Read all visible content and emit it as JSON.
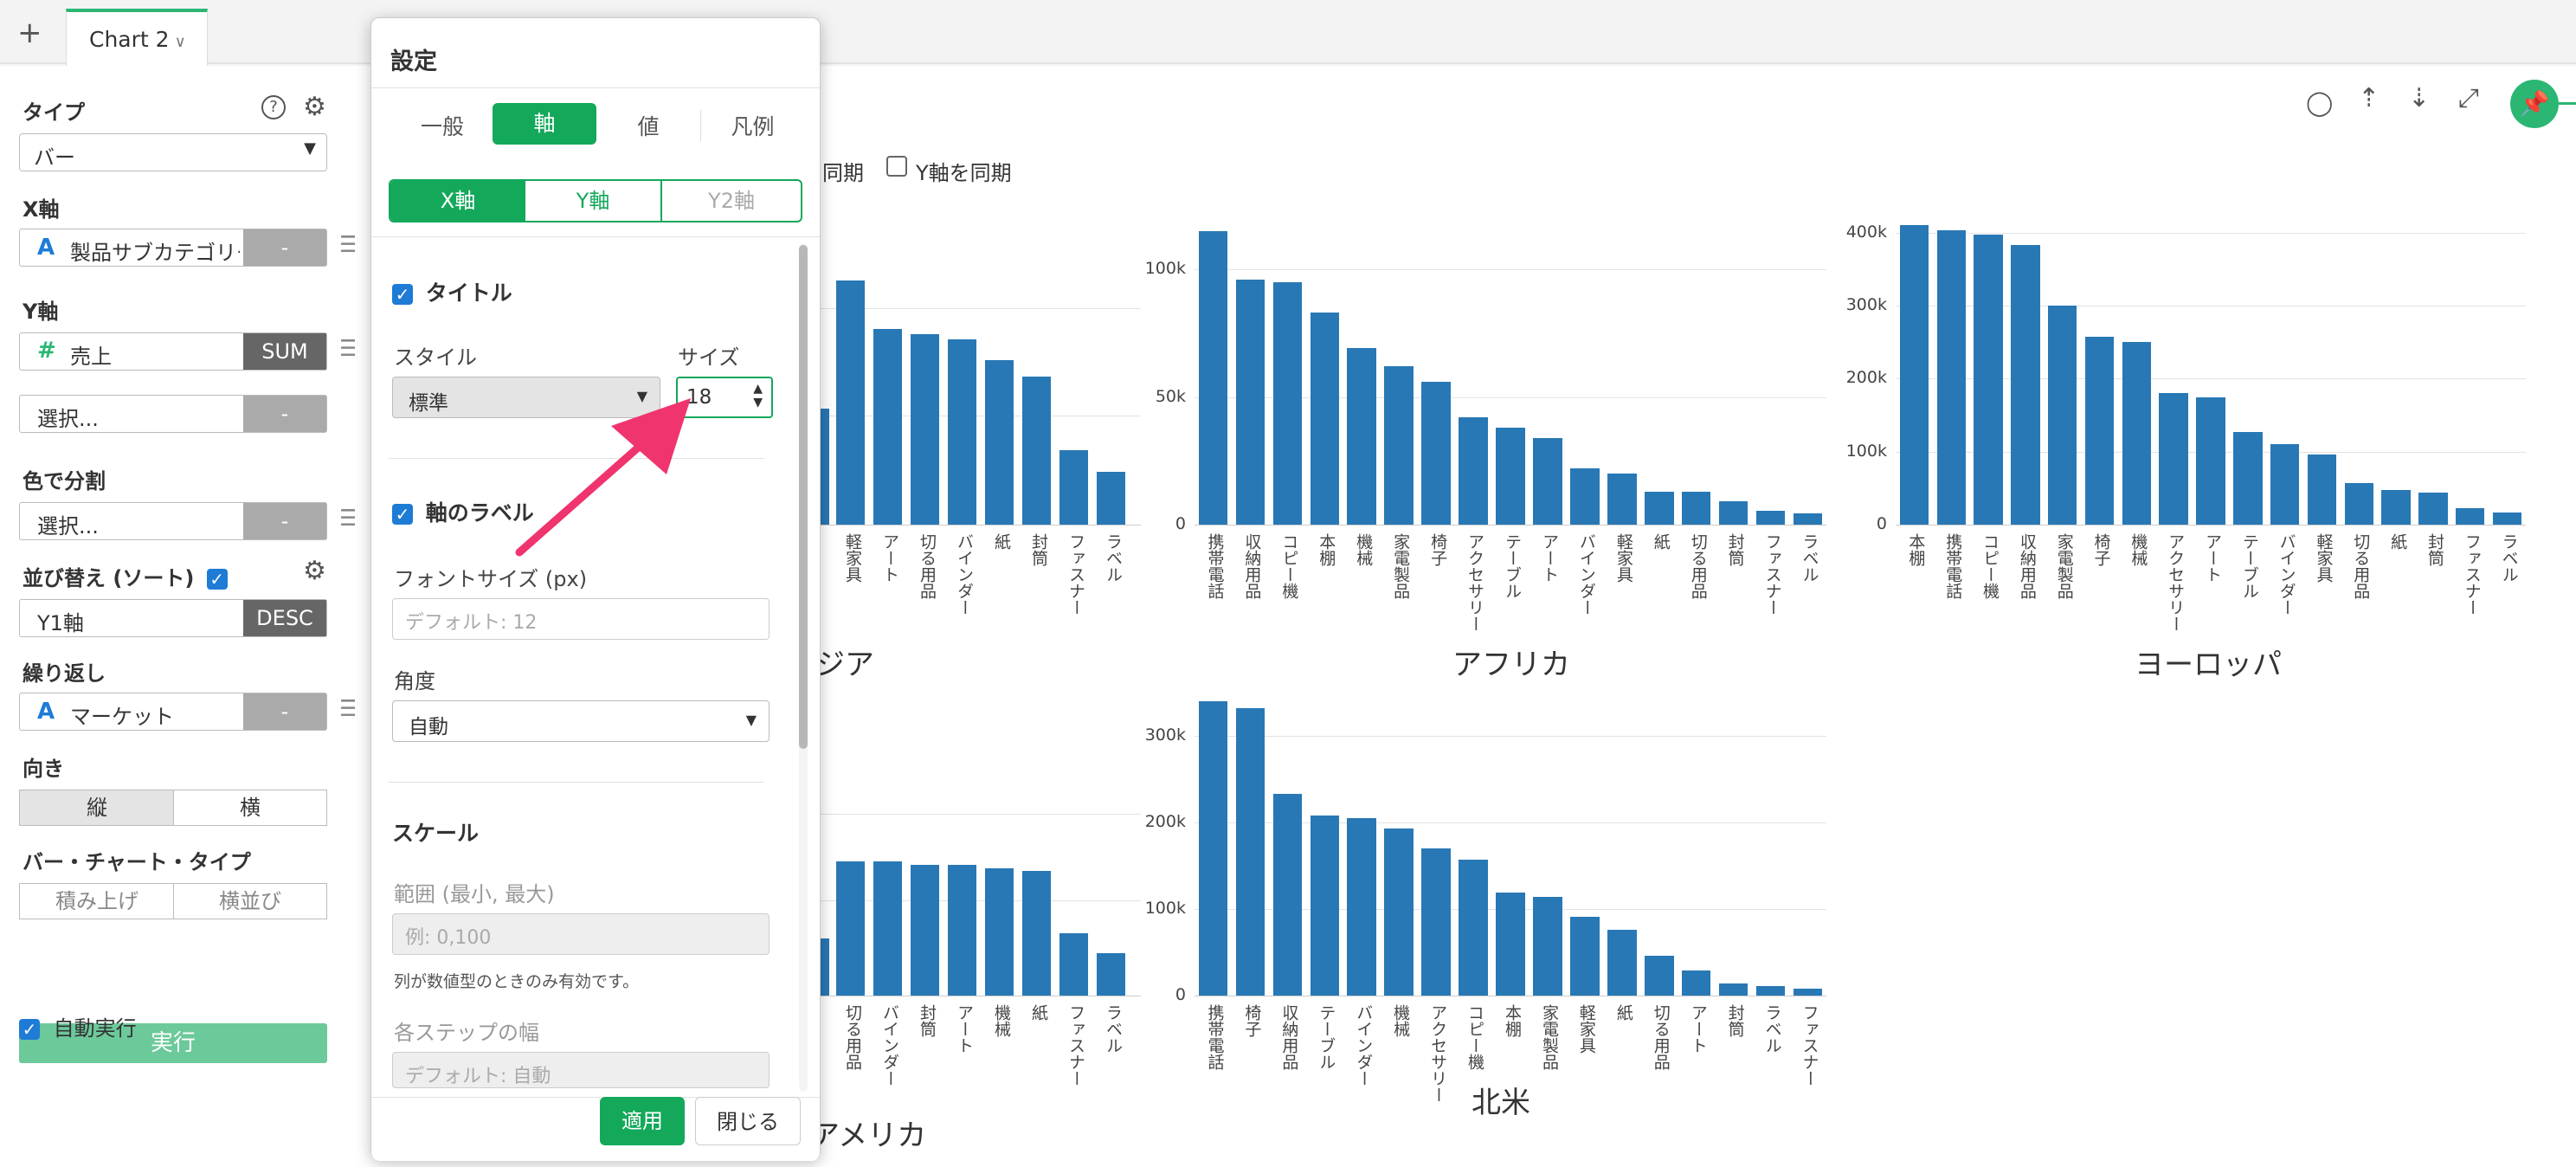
{
  "tabbar": {
    "plus": "+",
    "tab_label": "Chart 2",
    "tab_chevron": "∨"
  },
  "sidebar": {
    "type_label": "タイプ",
    "type_value": "バー",
    "x_label": "X軸",
    "x_field": "製品サブカテゴリー",
    "x_btn": "-",
    "y_label": "Y軸",
    "y_field": "売上",
    "y_btn": "SUM",
    "y2_field": "選択...",
    "y2_btn": "-",
    "color_label": "色で分割",
    "color_field": "選択...",
    "color_btn": "-",
    "sort_label": "並び替え (ソート)",
    "sort_field": "Y1軸",
    "sort_btn": "DESC",
    "repeat_label": "繰り返し",
    "repeat_field": "マーケット",
    "repeat_btn": "-",
    "orient_label": "向き",
    "orient_v": "縦",
    "orient_h": "横",
    "bartype_label": "バー・チャート・タイプ",
    "bartype_stack": "積み上げ",
    "bartype_side": "横並び",
    "run_label": "実行",
    "auto_run_label": "自動実行"
  },
  "dialog": {
    "title": "設定",
    "tabs": [
      "一般",
      "軸",
      "値",
      "凡例"
    ],
    "active_tab": "軸",
    "axis_tabs": [
      "X軸",
      "Y軸",
      "Y2軸"
    ],
    "title_section": "タイトル",
    "style_label": "スタイル",
    "style_value": "標準",
    "size_label": "サイズ",
    "size_value": "18",
    "axis_label_section": "軸のラベル",
    "font_size_label": "フォントサイズ (px)",
    "font_size_placeholder": "デフォルト: 12",
    "angle_label": "角度",
    "angle_value": "自動",
    "scale_section": "スケール",
    "range_label": "範囲 (最小, 最大)",
    "range_placeholder": "例: 0,100",
    "range_note": "列が数値型のときのみ有効です。",
    "step_label": "各ステップの幅",
    "step_placeholder": "デフォルト: 自動",
    "apply": "適用",
    "close": "閉じる"
  },
  "main": {
    "sync_x_label": "同期",
    "sync_y_label": "Y軸を同期",
    "toolbar_icons": [
      "comment-icon",
      "upload-icon",
      "download-icon",
      "expand-icon",
      "pin-icon"
    ]
  },
  "chart_data": [
    {
      "type": "bar",
      "title": "アジア",
      "visible_title": "ジア",
      "categories": [
        "軽家具",
        "アート",
        "切る用品",
        "バインダー",
        "紙",
        "封筒",
        "ファスナー",
        "ラベル"
      ],
      "values": [
        0.46,
        0.37,
        0.36,
        0.35,
        0.31,
        0.28,
        0.14,
        0.1
      ],
      "note": "partially hidden by dialog; values relative"
    },
    {
      "type": "bar",
      "title": "アフリカ",
      "categories": [
        "携帯電話",
        "収納用品",
        "コピー機",
        "本棚",
        "機械",
        "家電製品",
        "椅子",
        "アクセサリー",
        "テーブル",
        "アート",
        "バインダー",
        "軽家具",
        "紙",
        "切る用品",
        "封筒",
        "ファスナー",
        "ラベル"
      ],
      "values": [
        115000,
        96000,
        95000,
        83000,
        69000,
        62000,
        56000,
        42000,
        38000,
        34000,
        22000,
        20000,
        13000,
        13000,
        9000,
        5500,
        4500
      ],
      "yticks": [
        "0",
        "50k",
        "100k"
      ],
      "ylim": [
        0,
        120000
      ]
    },
    {
      "type": "bar",
      "title": "ヨーロッパ",
      "categories": [
        "本棚",
        "携帯電話",
        "コピー機",
        "収納用品",
        "家電製品",
        "椅子",
        "機械",
        "アクセサリー",
        "アート",
        "テーブル",
        "バインダー",
        "軽家具",
        "切る用品",
        "紙",
        "封筒",
        "ファスナー",
        "ラベル"
      ],
      "values": [
        410000,
        403000,
        398000,
        383000,
        300000,
        258000,
        250000,
        180000,
        175000,
        127000,
        110000,
        96000,
        57000,
        48000,
        44000,
        22000,
        17000
      ],
      "yticks": [
        "0",
        "100k",
        "200k",
        "300k",
        "400k"
      ],
      "ylim": [
        0,
        420000
      ]
    },
    {
      "type": "bar",
      "title": "アメリカ",
      "visible_title": "アメリカ",
      "categories": [
        "切る用品",
        "バインダー",
        "封筒",
        "アート",
        "機械",
        "紙",
        "ファスナー",
        "ラベル"
      ],
      "values": [
        0.41,
        0.41,
        0.4,
        0.4,
        0.39,
        0.38,
        0.19,
        0.13
      ],
      "note": "partially hidden by dialog; values relative"
    },
    {
      "type": "bar",
      "title": "北米",
      "categories": [
        "携帯電話",
        "椅子",
        "収納用品",
        "テーブル",
        "バインダー",
        "機械",
        "アクセサリー",
        "コピー機",
        "本棚",
        "家電製品",
        "軽家具",
        "紙",
        "切る用品",
        "アート",
        "封筒",
        "ラベル",
        "ファスナー"
      ],
      "values": [
        340000,
        332000,
        233000,
        208000,
        205000,
        193000,
        170000,
        157000,
        119000,
        114000,
        91000,
        76000,
        46000,
        29000,
        14000,
        11000,
        8000
      ],
      "yticks": [
        "0",
        "100k",
        "200k",
        "300k"
      ],
      "ylim": [
        0,
        350000
      ]
    }
  ]
}
